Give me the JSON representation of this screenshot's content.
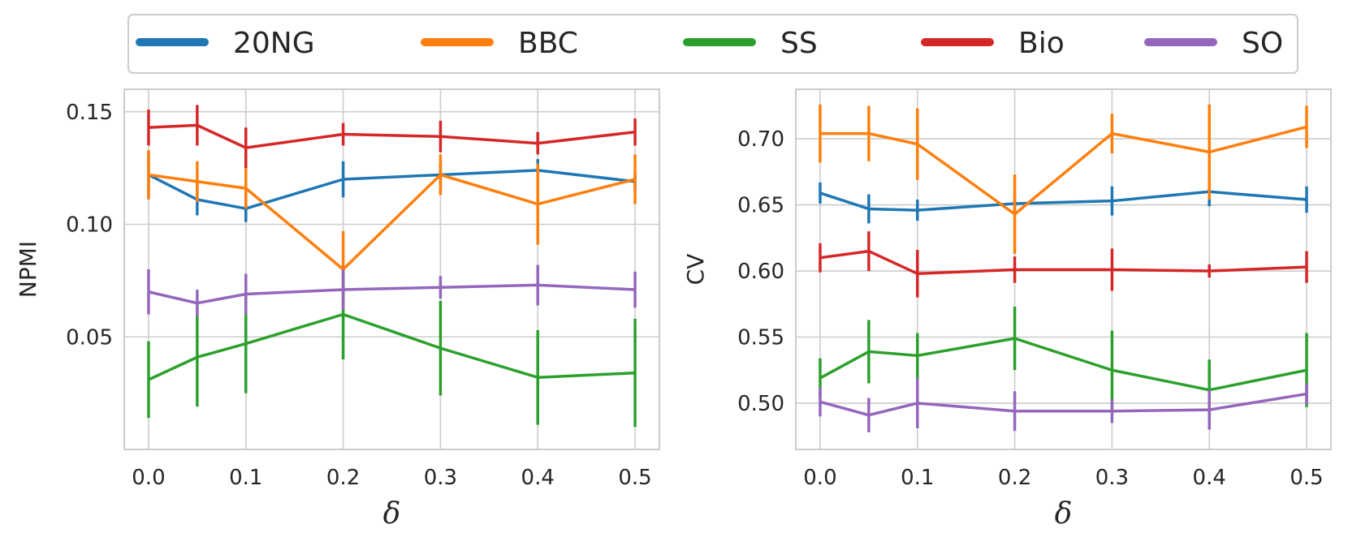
{
  "legend": {
    "placement": "top-center",
    "entries": [
      {
        "name": "20NG",
        "color": "#1f77b4"
      },
      {
        "name": "BBC",
        "color": "#ff7f0e"
      },
      {
        "name": "SS",
        "color": "#2ca02c"
      },
      {
        "name": "Bio",
        "color": "#d62728"
      },
      {
        "name": "SO",
        "color": "#9467bd"
      }
    ]
  },
  "chart_data": [
    {
      "type": "line",
      "xlabel": "δ",
      "ylabel": "NPMI",
      "x": [
        0.0,
        0.05,
        0.1,
        0.2,
        0.3,
        0.4,
        0.5
      ],
      "xticks": [
        0.0,
        0.1,
        0.2,
        0.3,
        0.4,
        0.5
      ],
      "xtick_labels": [
        "0.0",
        "0.1",
        "0.2",
        "0.3",
        "0.4",
        "0.5"
      ],
      "yticks": [
        0.05,
        0.1,
        0.15
      ],
      "ytick_labels": [
        "0.05",
        "0.10",
        "0.15"
      ],
      "xlim": [
        -0.025,
        0.525
      ],
      "ylim": [
        0.0,
        0.16
      ],
      "grid": true,
      "series": [
        {
          "name": "20NG",
          "color": "#1f77b4",
          "values": [
            0.122,
            0.111,
            0.107,
            0.12,
            0.122,
            0.124,
            0.119
          ],
          "err": [
            0.01,
            0.007,
            0.006,
            0.008,
            0.005,
            0.005,
            0.004
          ]
        },
        {
          "name": "BBC",
          "color": "#ff7f0e",
          "values": [
            0.122,
            0.119,
            0.116,
            0.08,
            0.122,
            0.109,
            0.12
          ],
          "err": [
            0.011,
            0.009,
            0.009,
            0.017,
            0.009,
            0.018,
            0.011
          ]
        },
        {
          "name": "SS",
          "color": "#2ca02c",
          "values": [
            0.031,
            0.041,
            0.047,
            0.06,
            0.045,
            0.032,
            0.034
          ],
          "err": [
            0.017,
            0.022,
            0.022,
            0.02,
            0.021,
            0.021,
            0.024
          ]
        },
        {
          "name": "Bio",
          "color": "#d62728",
          "values": [
            0.143,
            0.144,
            0.134,
            0.14,
            0.139,
            0.136,
            0.141
          ],
          "err": [
            0.008,
            0.009,
            0.009,
            0.005,
            0.007,
            0.005,
            0.006
          ]
        },
        {
          "name": "SO",
          "color": "#9467bd",
          "values": [
            0.07,
            0.065,
            0.069,
            0.071,
            0.072,
            0.073,
            0.071
          ],
          "err": [
            0.01,
            0.006,
            0.009,
            0.009,
            0.005,
            0.009,
            0.008
          ]
        }
      ]
    },
    {
      "type": "line",
      "xlabel": "δ",
      "ylabel": "CV",
      "x": [
        0.0,
        0.05,
        0.1,
        0.2,
        0.3,
        0.4,
        0.5
      ],
      "xticks": [
        0.0,
        0.1,
        0.2,
        0.3,
        0.4,
        0.5
      ],
      "xtick_labels": [
        "0.0",
        "0.1",
        "0.2",
        "0.3",
        "0.4",
        "0.5"
      ],
      "yticks": [
        0.5,
        0.55,
        0.6,
        0.65,
        0.7
      ],
      "ytick_labels": [
        "0.50",
        "0.55",
        "0.60",
        "0.65",
        "0.70"
      ],
      "xlim": [
        -0.025,
        0.525
      ],
      "ylim": [
        0.465,
        0.7375
      ],
      "grid": true,
      "series": [
        {
          "name": "20NG",
          "color": "#1f77b4",
          "values": [
            0.659,
            0.647,
            0.646,
            0.651,
            0.653,
            0.66,
            0.654
          ],
          "err": [
            0.008,
            0.011,
            0.008,
            0.008,
            0.011,
            0.011,
            0.01
          ]
        },
        {
          "name": "BBC",
          "color": "#ff7f0e",
          "values": [
            0.704,
            0.704,
            0.696,
            0.643,
            0.704,
            0.69,
            0.709
          ],
          "err": [
            0.022,
            0.021,
            0.027,
            0.03,
            0.015,
            0.036,
            0.016
          ]
        },
        {
          "name": "SS",
          "color": "#2ca02c",
          "values": [
            0.519,
            0.539,
            0.536,
            0.549,
            0.525,
            0.51,
            0.525
          ],
          "err": [
            0.015,
            0.024,
            0.017,
            0.024,
            0.03,
            0.023,
            0.028
          ]
        },
        {
          "name": "Bio",
          "color": "#d62728",
          "values": [
            0.61,
            0.615,
            0.598,
            0.601,
            0.601,
            0.6,
            0.603
          ],
          "err": [
            0.011,
            0.015,
            0.018,
            0.01,
            0.016,
            0.005,
            0.012
          ]
        },
        {
          "name": "SO",
          "color": "#9467bd",
          "values": [
            0.501,
            0.491,
            0.5,
            0.494,
            0.494,
            0.495,
            0.507
          ],
          "err": [
            0.011,
            0.013,
            0.019,
            0.015,
            0.009,
            0.015,
            0.008
          ]
        }
      ]
    }
  ]
}
